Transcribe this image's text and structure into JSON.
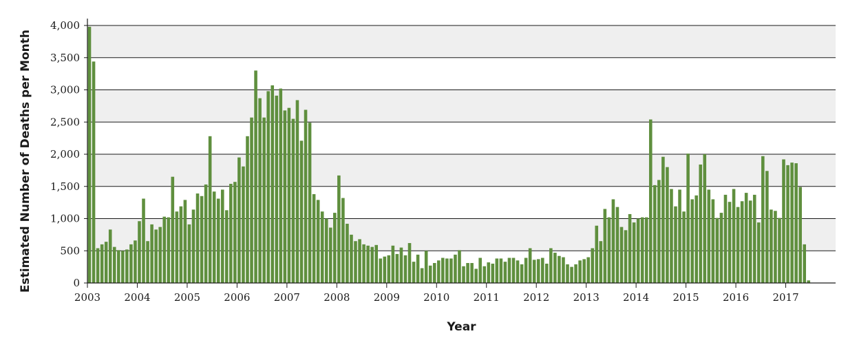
{
  "chart_data": {
    "type": "bar",
    "title": "",
    "xlabel": "Year",
    "ylabel": "Estimated Number of Deaths per Month",
    "ylim": [
      0,
      4000
    ],
    "yticks": [
      {
        "value": 0,
        "label": "0"
      },
      {
        "value": 500,
        "label": "500"
      },
      {
        "value": 1000,
        "label": "1,000"
      },
      {
        "value": 1500,
        "label": "1,500"
      },
      {
        "value": 2000,
        "label": "2,000"
      },
      {
        "value": 2500,
        "label": "2,500"
      },
      {
        "value": 3000,
        "label": "3,000"
      },
      {
        "value": 3500,
        "label": "3,500"
      },
      {
        "value": 4000,
        "label": "4,000"
      }
    ],
    "xticks": [
      "2003",
      "2004",
      "2005",
      "2006",
      "2007",
      "2008",
      "2009",
      "2010",
      "2011",
      "2012",
      "2013",
      "2014",
      "2015",
      "2016",
      "2017"
    ],
    "start": "2003-01",
    "grid": "horizontal",
    "band_color": "#efefef",
    "bar_color": "#5f8f3e",
    "series": [
      {
        "values": [
          3980,
          3440,
          540,
          600,
          640,
          830,
          560,
          510,
          500,
          520,
          600,
          660,
          960,
          1310,
          650,
          910,
          830,
          870,
          1030,
          1020,
          1650,
          1110,
          1190,
          1290,
          910,
          1140,
          1390,
          1350,
          1530,
          2280,
          1420,
          1310,
          1450,
          1130,
          1540,
          1570,
          1950,
          1810,
          2280,
          2570,
          3300,
          2870,
          2570,
          2980,
          3070,
          2910,
          3020,
          2680,
          2720,
          2550,
          2840,
          2210,
          2690,
          2490,
          1380,
          1290,
          1110,
          1000,
          860,
          1090,
          1670,
          1320,
          920,
          750,
          650,
          680,
          600,
          580,
          560,
          590,
          380,
          410,
          430,
          580,
          450,
          550,
          430,
          620,
          330,
          440,
          230,
          500,
          270,
          310,
          350,
          390,
          380,
          380,
          440,
          510,
          260,
          310,
          310,
          220,
          390,
          260,
          320,
          300,
          380,
          380,
          330,
          390,
          390,
          350,
          290,
          390,
          540,
          360,
          370,
          390,
          300,
          540,
          470,
          420,
          400,
          290,
          250,
          290,
          350,
          370,
          400,
          540,
          890,
          650,
          1150,
          1020,
          1300,
          1180,
          870,
          820,
          1070,
          940,
          1000,
          1020,
          1020,
          2540,
          1520,
          1600,
          1960,
          1800,
          1460,
          1190,
          1450,
          1110,
          2010,
          1300,
          1360,
          1840,
          2000,
          1450,
          1300,
          1010,
          1090,
          1370,
          1260,
          1460,
          1180,
          1270,
          1400,
          1280,
          1370,
          940,
          1970,
          1740,
          1140,
          1120,
          1010,
          1920,
          1830,
          1870,
          1860,
          1490,
          600,
          40
        ]
      }
    ]
  }
}
